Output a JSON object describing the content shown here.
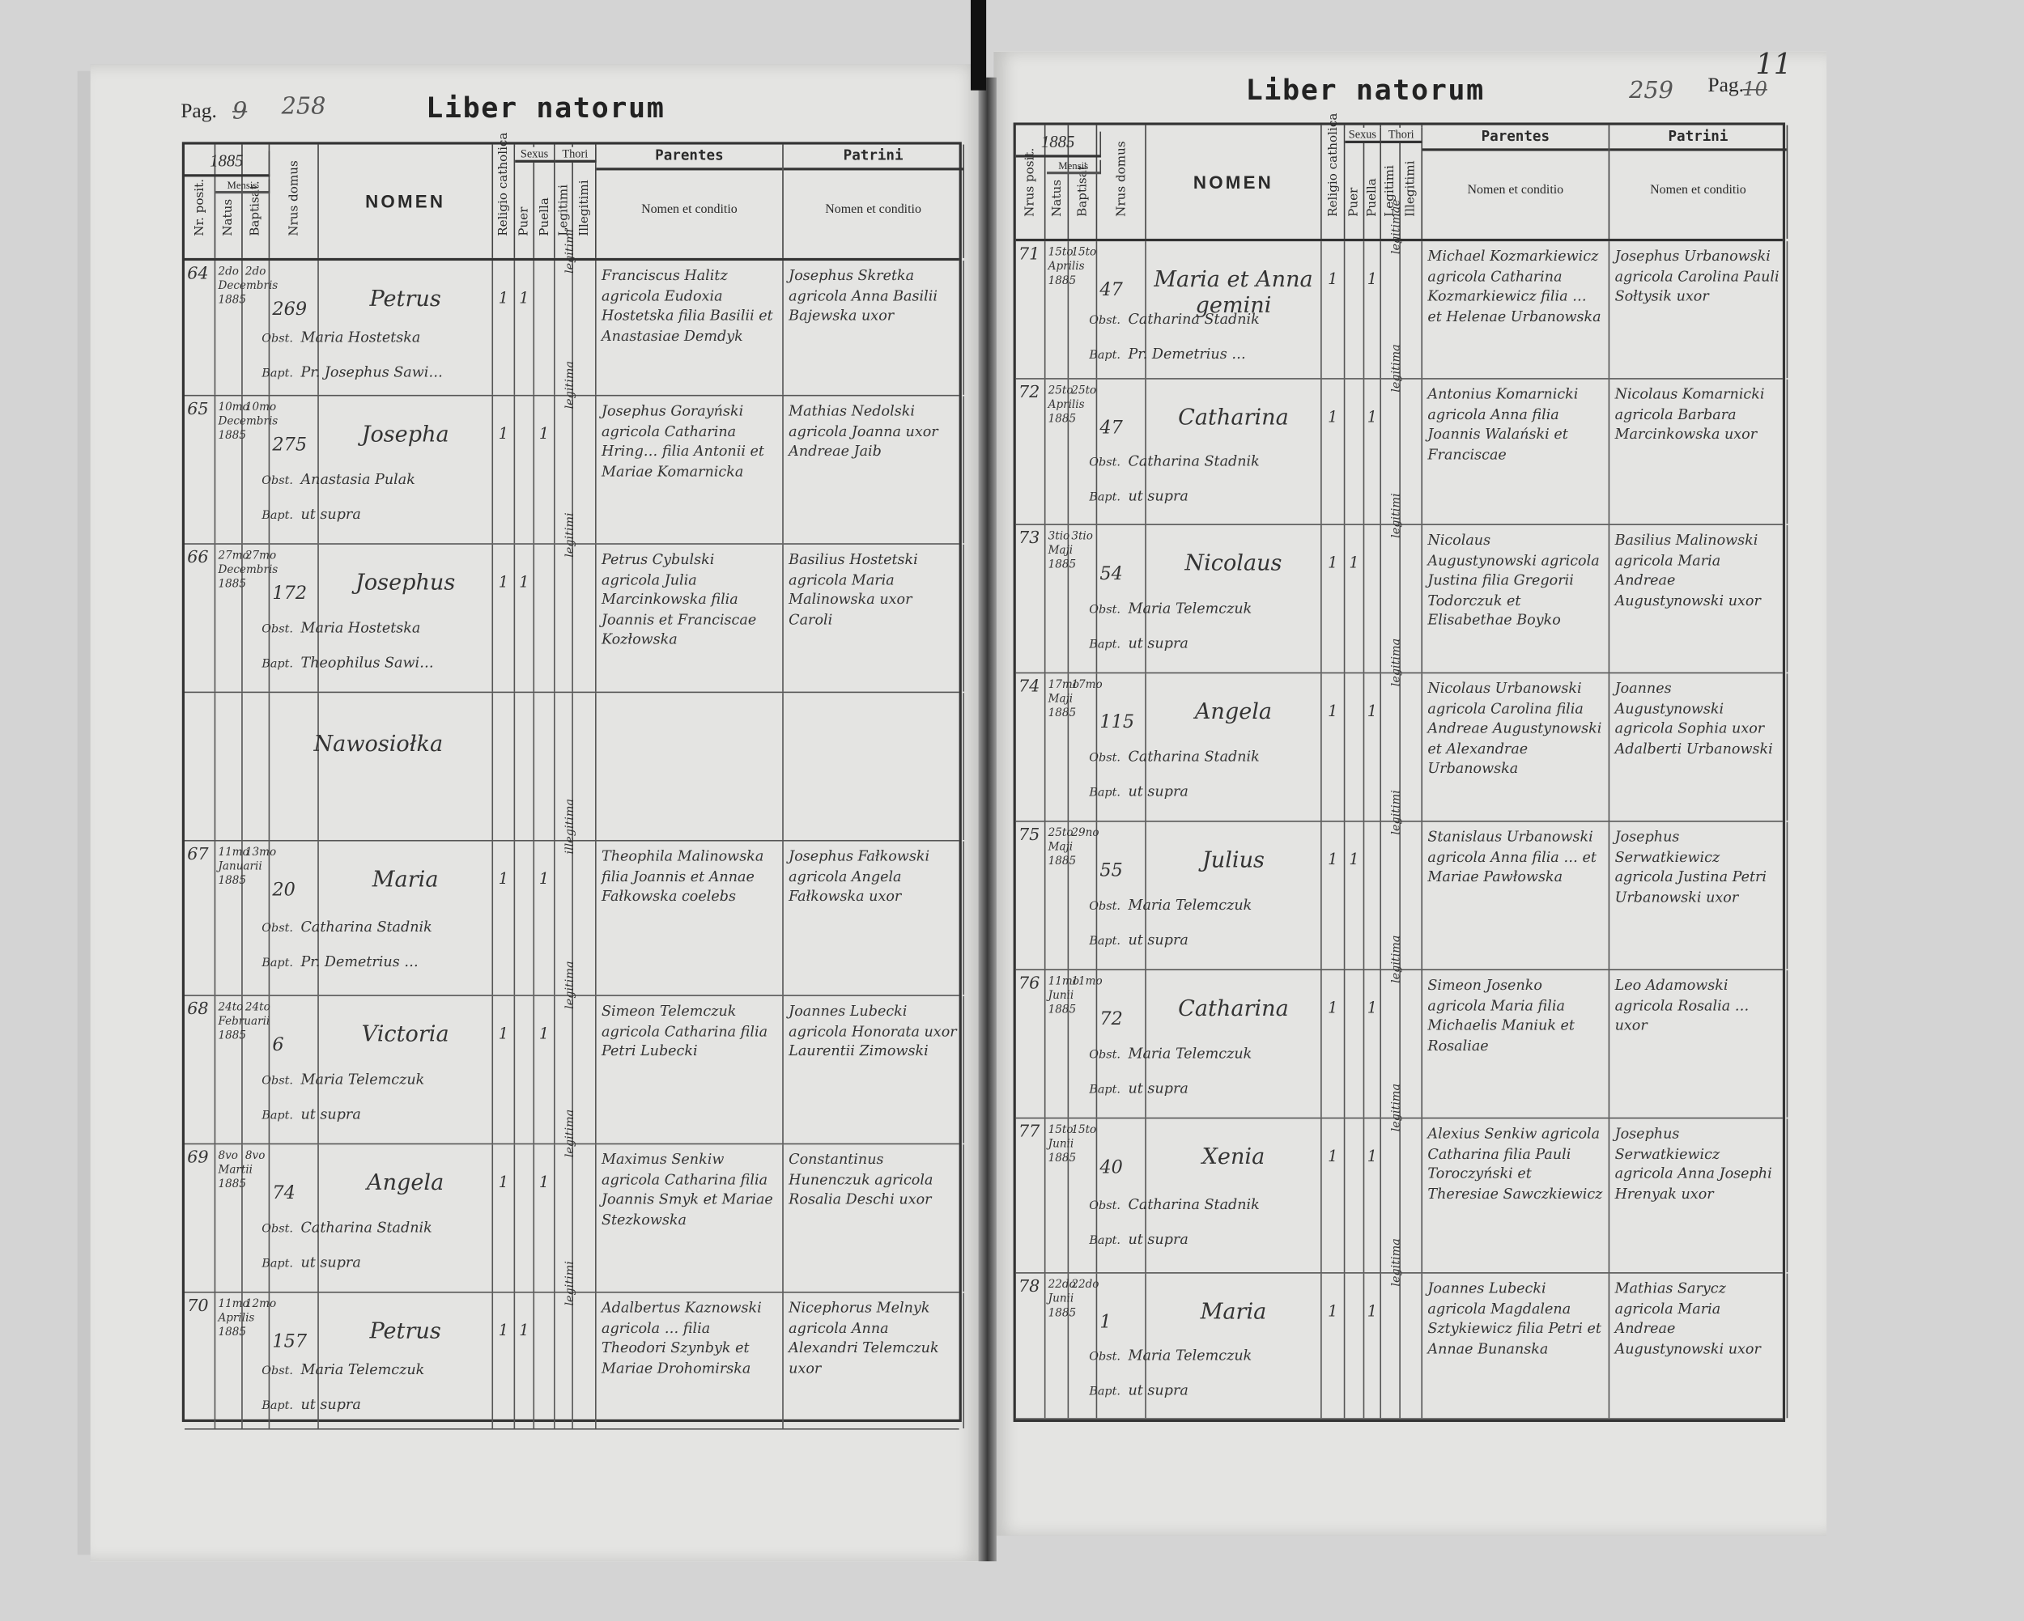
{
  "left": {
    "pag_label": "Pag.",
    "pag_old": "9",
    "pag_new": "258",
    "title": "Liber natorum",
    "headers": {
      "year": "1885",
      "mensis": "Mensis",
      "nr": "Nr. posit.",
      "natus": "Natus",
      "baptisat": "Baptisat.",
      "domus": "Nrus domus",
      "nomen": "NOMEN",
      "religio": "Religio catholica",
      "sexus": "Sexus",
      "puer": "Puer",
      "puella": "Puella",
      "thori": "Thori",
      "legitimi": "Legitimi",
      "illegitimi": "Illegitimi",
      "parentes": "Parentes",
      "patrini": "Patrini",
      "nomen_conditio": "Nomen et conditio"
    },
    "section_title": "Nawosiołka",
    "entries": [
      {
        "nr": "64",
        "natus": "2do Decembris 1885",
        "bapt": "2do",
        "domus": "269",
        "nomen": "Petrus",
        "religio": "1",
        "puer": "1",
        "puella": "",
        "thori": "legitimi",
        "obst": "Maria Hostetska",
        "bapt_by": "Pr. Josephus Sawi…",
        "parentes": "Franciscus Halitz agricola Eudoxia Hostetska filia Basilii et Anastasiae Demdyk",
        "patrini": "Josephus Skretka agricola Anna Basilii Bajewska uxor"
      },
      {
        "nr": "65",
        "natus": "10mo Decembris 1885",
        "bapt": "10mo",
        "domus": "275",
        "nomen": "Josepha",
        "religio": "1",
        "puer": "",
        "puella": "1",
        "thori": "legitima",
        "obst": "Anastasia Pulak",
        "bapt_by": "ut supra",
        "parentes": "Josephus Gorayński agricola Catharina Hring… filia Antonii et Mariae Komarnicka",
        "patrini": "Mathias Nedolski agricola Joanna uxor Andreae Jaib"
      },
      {
        "nr": "66",
        "natus": "27mo Decembris 1885",
        "bapt": "27mo",
        "domus": "172",
        "nomen": "Josephus",
        "religio": "1",
        "puer": "1",
        "puella": "",
        "thori": "legitimi",
        "obst": "Maria Hostetska",
        "bapt_by": "Theophilus Sawi…",
        "parentes": "Petrus Cybulski agricola Julia Marcinkowska filia Joannis et Franciscae Kozłowska",
        "patrini": "Basilius Hostetski agricola Maria Malinowska uxor Caroli"
      },
      {
        "nr": "67",
        "natus": "11mo Januarii 1885",
        "bapt": "13mo",
        "domus": "20",
        "nomen": "Maria",
        "religio": "1",
        "puer": "",
        "puella": "1",
        "thori": "illegitima",
        "obst": "Catharina Stadnik",
        "bapt_by": "Pr. Demetrius …",
        "parentes": "Theophila Malinowska filia Joannis et Annae Fałkowska coelebs",
        "patrini": "Josephus Fałkowski agricola Angela Fałkowska uxor"
      },
      {
        "nr": "68",
        "natus": "24to Februarii 1885",
        "bapt": "24to",
        "domus": "6",
        "nomen": "Victoria",
        "religio": "1",
        "puer": "",
        "puella": "1",
        "thori": "legitima",
        "obst": "Maria Telemczuk",
        "bapt_by": "ut supra",
        "parentes": "Simeon Telemczuk agricola Catharina filia Petri Lubecki",
        "patrini": "Joannes Lubecki agricola Honorata uxor Laurentii Zimowski"
      },
      {
        "nr": "69",
        "natus": "8vo Martii 1885",
        "bapt": "8vo",
        "domus": "74",
        "nomen": "Angela",
        "religio": "1",
        "puer": "",
        "puella": "1",
        "thori": "legitima",
        "obst": "Catharina Stadnik",
        "bapt_by": "ut supra",
        "parentes": "Maximus Senkiw agricola Catharina filia Joannis Smyk et Mariae Stezkowska",
        "patrini": "Constantinus Hunenczuk agricola Rosalia Deschi uxor"
      },
      {
        "nr": "70",
        "natus": "11mo Aprilis 1885",
        "bapt": "12mo",
        "domus": "157",
        "nomen": "Petrus",
        "religio": "1",
        "puer": "1",
        "puella": "",
        "thori": "legitimi",
        "obst": "Maria Telemczuk",
        "bapt_by": "ut supra",
        "parentes": "Adalbertus Kaznowski agricola … filia Theodori Szynbyk et Mariae Drohomirska",
        "patrini": "Nicephorus Melnyk agricola Anna Alexandri Telemczuk uxor"
      }
    ]
  },
  "right": {
    "pag_label": "Pag.",
    "pag_old": "10",
    "pag_new": "11",
    "page_number": "259",
    "title": "Liber natorum",
    "headers": {
      "year": "1885",
      "mensis": "Mensis",
      "nr": "Nrus posit.",
      "natus": "Natus",
      "baptisat": "Baptisat.",
      "domus": "Nrus domus",
      "nomen": "NOMEN",
      "religio": "Religio catholica",
      "sexus": "Sexus",
      "puer": "Puer",
      "puella": "Puella",
      "thori": "Thori",
      "legitimi": "Legitimi",
      "illegitimi": "Illegitimi",
      "parentes": "Parentes",
      "patrini": "Patrini",
      "nomen_conditio": "Nomen et conditio"
    },
    "entries": [
      {
        "nr": "71",
        "natus": "15to Aprilis 1885",
        "bapt": "15to",
        "domus": "47",
        "nomen": "Maria et Anna gemini",
        "religio": "1",
        "puer": "",
        "puella": "1",
        "thori": "legitimae",
        "obst": "Catharina Stadnik",
        "bapt_by": "Pr. Demetrius …",
        "parentes": "Michael Kozmarkiewicz agricola Catharina Kozmarkiewicz filia … et Helenae Urbanowska",
        "patrini": "Josephus Urbanowski agricola Carolina Pauli Sołtysik uxor"
      },
      {
        "nr": "72",
        "natus": "25to Aprilis 1885",
        "bapt": "25to",
        "domus": "47",
        "nomen": "Catharina",
        "religio": "1",
        "puer": "",
        "puella": "1",
        "thori": "legitima",
        "obst": "Catharina Stadnik",
        "bapt_by": "ut supra",
        "parentes": "Antonius Komarnicki agricola Anna filia Joannis Walański et Franciscae",
        "patrini": "Nicolaus Komarnicki agricola Barbara Marcinkowska uxor"
      },
      {
        "nr": "73",
        "natus": "3tio Maji 1885",
        "bapt": "3tio",
        "domus": "54",
        "nomen": "Nicolaus",
        "religio": "1",
        "puer": "1",
        "puella": "",
        "thori": "legitimi",
        "obst": "Maria Telemczuk",
        "bapt_by": "ut supra",
        "parentes": "Nicolaus Augustynowski agricola Justina filia Gregorii Todorczuk et Elisabethae Boyko",
        "patrini": "Basilius Malinowski agricola Maria Andreae Augustynowski uxor"
      },
      {
        "nr": "74",
        "natus": "17mo Maji 1885",
        "bapt": "17mo",
        "domus": "115",
        "nomen": "Angela",
        "religio": "1",
        "puer": "",
        "puella": "1",
        "thori": "legitima",
        "obst": "Catharina Stadnik",
        "bapt_by": "ut supra",
        "parentes": "Nicolaus Urbanowski agricola Carolina filia Andreae Augustynowski et Alexandrae Urbanowska",
        "patrini": "Joannes Augustynowski agricola Sophia uxor Adalberti Urbanowski"
      },
      {
        "nr": "75",
        "natus": "25to Maji 1885",
        "bapt": "29no",
        "domus": "55",
        "nomen": "Julius",
        "religio": "1",
        "puer": "1",
        "puella": "",
        "thori": "legitimi",
        "obst": "Maria Telemczuk",
        "bapt_by": "ut supra",
        "parentes": "Stanislaus Urbanowski agricola Anna filia … et Mariae Pawłowska",
        "patrini": "Josephus Serwatkiewicz agricola Justina Petri Urbanowski uxor"
      },
      {
        "nr": "76",
        "natus": "11mo Junii 1885",
        "bapt": "11mo",
        "domus": "72",
        "nomen": "Catharina",
        "religio": "1",
        "puer": "",
        "puella": "1",
        "thori": "legitima",
        "obst": "Maria Telemczuk",
        "bapt_by": "ut supra",
        "parentes": "Simeon Josenko agricola Maria filia Michaelis Maniuk et Rosaliae",
        "patrini": "Leo Adamowski agricola Rosalia … uxor"
      },
      {
        "nr": "77",
        "natus": "15to Junii 1885",
        "bapt": "15to",
        "domus": "40",
        "nomen": "Xenia",
        "religio": "1",
        "puer": "",
        "puella": "1",
        "thori": "legitima",
        "obst": "Catharina Stadnik",
        "bapt_by": "ut supra",
        "parentes": "Alexius Senkiw agricola Catharina filia Pauli Toroczyński et Theresiae Sawczkiewicz",
        "patrini": "Josephus Serwatkiewicz agricola Anna Josephi Hrenyak uxor"
      },
      {
        "nr": "78",
        "natus": "22do Junii 1885",
        "bapt": "22do",
        "domus": "1",
        "nomen": "Maria",
        "religio": "1",
        "puer": "",
        "puella": "1",
        "thori": "legitima",
        "obst": "Maria Telemczuk",
        "bapt_by": "ut supra",
        "parentes": "Joannes Lubecki agricola Magdalena Sztykiewicz filia Petri et Annae Bunanska",
        "patrini": "Mathias Sarycz agricola Maria Andreae Augustynowski uxor"
      }
    ]
  },
  "labels": {
    "obst": "Obst.",
    "bapt": "Bapt."
  }
}
